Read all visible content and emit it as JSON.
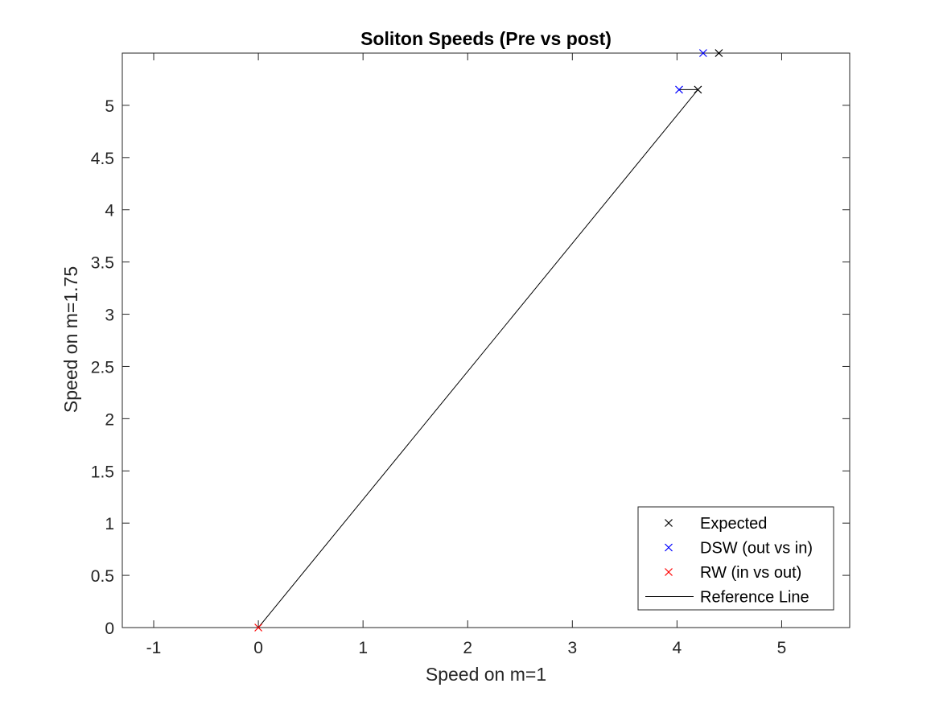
{
  "chart_data": {
    "type": "scatter",
    "title": "Soliton Speeds (Pre vs post)",
    "xlabel": "Speed on m=1",
    "ylabel": "Speed on m=1.75",
    "xlim": [
      -1.3,
      5.65
    ],
    "ylim": [
      0,
      5.5
    ],
    "xticks": [
      -1,
      0,
      1,
      2,
      3,
      4,
      5
    ],
    "yticks": [
      0,
      0.5,
      1,
      1.5,
      2,
      2.5,
      3,
      3.5,
      4,
      4.5,
      5
    ],
    "xtick_labels": [
      "-1",
      "0",
      "1",
      "2",
      "3",
      "4",
      "5"
    ],
    "ytick_labels": [
      "0",
      "0.5",
      "1",
      "1.5",
      "2",
      "2.5",
      "3",
      "3.5",
      "4",
      "4.5",
      "5"
    ],
    "grid": false,
    "legend_position": "bottom-right",
    "series": [
      {
        "name": "Expected",
        "kind": "marker",
        "marker": "x",
        "color": "#000000",
        "x": [
          4.2,
          4.4
        ],
        "y": [
          5.15,
          5.5
        ]
      },
      {
        "name": "DSW (out vs in)",
        "kind": "marker",
        "marker": "x",
        "color": "#0000ff",
        "x": [
          4.02,
          4.25
        ],
        "y": [
          5.15,
          5.5
        ]
      },
      {
        "name": "RW (in vs out)",
        "kind": "marker",
        "marker": "x",
        "color": "#ff0000",
        "x": [
          0
        ],
        "y": [
          0
        ]
      },
      {
        "name": "Reference Line",
        "kind": "line",
        "color": "#000000",
        "x": [
          0,
          4.2,
          4.02
        ],
        "y": [
          0,
          5.15,
          5.15
        ]
      }
    ]
  }
}
